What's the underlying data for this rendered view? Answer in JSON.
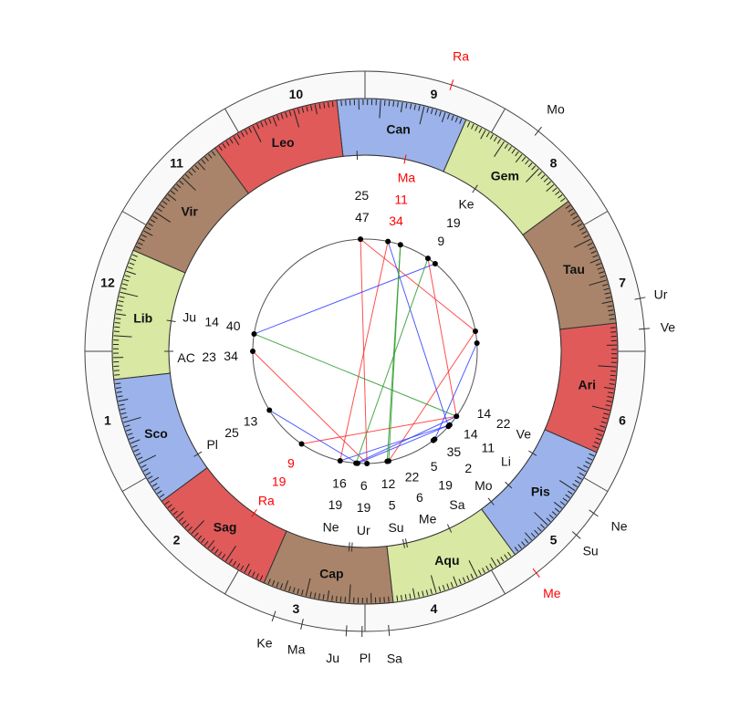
{
  "chart": {
    "ascendant": {
      "sign": "Lib",
      "deg": 23,
      "min": 34
    },
    "house_system_houses": [
      "1",
      "2",
      "3",
      "4",
      "5",
      "6",
      "7",
      "8",
      "9",
      "10",
      "11",
      "12"
    ],
    "signs": [
      {
        "name": "Ari",
        "color": "#e05a5a"
      },
      {
        "name": "Tau",
        "color": "#a9846a"
      },
      {
        "name": "Gem",
        "color": "#d9e8a2"
      },
      {
        "name": "Can",
        "color": "#9bb3ea"
      },
      {
        "name": "Leo",
        "color": "#e05a5a"
      },
      {
        "name": "Vir",
        "color": "#a9846a"
      },
      {
        "name": "Lib",
        "color": "#d9e8a2"
      },
      {
        "name": "Sco",
        "color": "#9bb3ea"
      },
      {
        "name": "Sag",
        "color": "#e05a5a"
      },
      {
        "name": "Cap",
        "color": "#a9846a"
      },
      {
        "name": "Aqu",
        "color": "#d9e8a2"
      },
      {
        "name": "Pis",
        "color": "#9bb3ea"
      }
    ],
    "natal_points": [
      {
        "name": "",
        "deg": "25",
        "min": "47",
        "retrograde": false
      },
      {
        "name": "Ma",
        "deg": "11",
        "min": "34",
        "retrograde": true
      },
      {
        "name": "Ke",
        "deg": "19",
        "min": "9",
        "retrograde": false
      },
      {
        "name": "Ju",
        "deg": "14",
        "min": "40",
        "retrograde": false
      },
      {
        "name": "AC",
        "deg": "23",
        "min": "34",
        "retrograde": false
      },
      {
        "name": "Pl",
        "deg": "25",
        "min": "13",
        "retrograde": false
      },
      {
        "name": "Ra",
        "deg": "19",
        "min": "9",
        "retrograde": true
      },
      {
        "name": "Ne",
        "deg": "19",
        "min": "16",
        "retrograde": false
      },
      {
        "name": "Ur",
        "deg": "19",
        "min": "6",
        "retrograde": false
      },
      {
        "name": "Su",
        "deg": "5",
        "min": "12",
        "retrograde": false
      },
      {
        "name": "Me",
        "deg": "6",
        "min": "22",
        "retrograde": false
      },
      {
        "name": "Sa",
        "deg": "19",
        "min": "5",
        "retrograde": false
      },
      {
        "name": "Mo",
        "deg": "2",
        "min": "35",
        "retrograde": false
      },
      {
        "name": "Li",
        "deg": "11",
        "min": "14",
        "retrograde": false
      },
      {
        "name": "Ve",
        "deg": "22",
        "min": "14",
        "retrograde": false
      }
    ],
    "transit_points": [
      {
        "name": "Ra",
        "retrograde": true
      },
      {
        "name": "Mo",
        "retrograde": false
      },
      {
        "name": "Ur",
        "retrograde": false
      },
      {
        "name": "Ve",
        "retrograde": false
      },
      {
        "name": "Ne",
        "retrograde": false
      },
      {
        "name": "Su",
        "retrograde": false
      },
      {
        "name": "Me",
        "retrograde": true
      },
      {
        "name": "Sa",
        "retrograde": false
      },
      {
        "name": "Pl",
        "retrograde": false
      },
      {
        "name": "Ju",
        "retrograde": false
      },
      {
        "name": "Ma",
        "retrograde": false
      },
      {
        "name": "Ke",
        "retrograde": false
      }
    ],
    "aspect_colors": {
      "hard": "#ff3030",
      "soft": "#3040ff",
      "minor": "#2a9a2a"
    },
    "retrograde_color": "#ff0000"
  }
}
